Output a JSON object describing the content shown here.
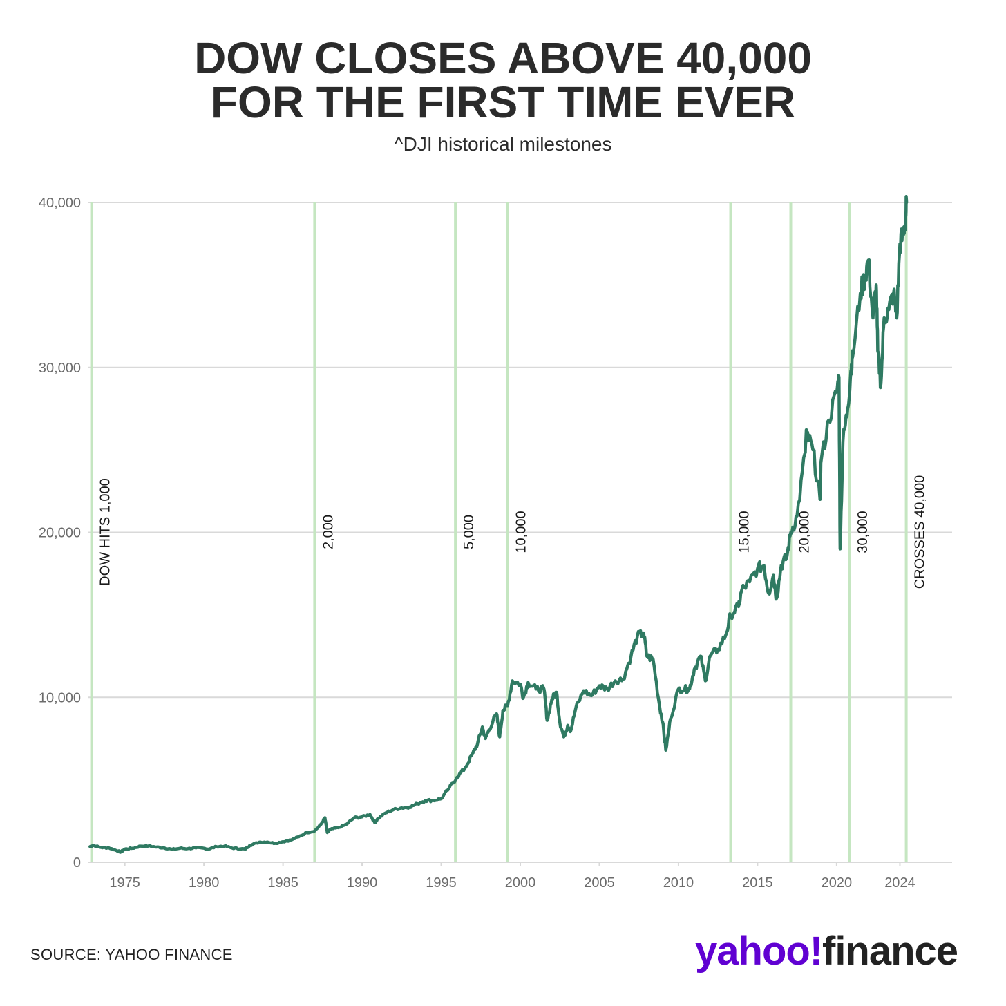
{
  "header": {
    "title_line1": "DOW CLOSES ABOVE 40,000",
    "title_line2": "FOR THE FIRST TIME EVER",
    "subtitle": "^DJI historical milestones"
  },
  "footer": {
    "source": "SOURCE: YAHOO FINANCE",
    "logo_brand": "yahoo!",
    "logo_product": "finance"
  },
  "colors": {
    "line": "#2f7a62",
    "milestone": "#c5e6c1",
    "grid": "#d9d9d9",
    "logo_brand": "#6001d2",
    "logo_product": "#222222"
  },
  "chart_data": {
    "type": "line",
    "title": "DOW CLOSES ABOVE 40,000 FOR THE FIRST TIME EVER",
    "subtitle": "^DJI historical milestones",
    "xlabel": "",
    "ylabel": "",
    "xlim": [
      1972.7,
      2027.3
    ],
    "ylim": [
      0,
      40000
    ],
    "grid": "horizontal",
    "x_ticks": [
      1975,
      1980,
      1985,
      1990,
      1995,
      2000,
      2005,
      2010,
      2015,
      2020,
      2024
    ],
    "x_tick_labels": [
      "1975",
      "1980",
      "1985",
      "1990",
      "1995",
      "2000",
      "2005",
      "2010",
      "2015",
      "2020",
      "2024"
    ],
    "y_ticks": [
      0,
      10000,
      20000,
      30000,
      40000
    ],
    "y_tick_labels": [
      "0",
      "10,000",
      "20,000",
      "30,000",
      "40,000"
    ],
    "milestones": [
      {
        "x": 1972.9,
        "label": "DOW HITS 1,000"
      },
      {
        "x": 1987.0,
        "label": "2,000"
      },
      {
        "x": 1995.9,
        "label": "5,000"
      },
      {
        "x": 1999.2,
        "label": "10,000"
      },
      {
        "x": 2013.3,
        "label": "15,000"
      },
      {
        "x": 2017.1,
        "label": "20,000"
      },
      {
        "x": 2020.8,
        "label": "30,000"
      },
      {
        "x": 2024.4,
        "label": "CROSSES 40,000"
      }
    ],
    "series": [
      {
        "x": [
          1972.8,
          1973.0,
          1973.5,
          1974.0,
          1974.5,
          1974.75,
          1975.0,
          1975.5,
          1976.0,
          1976.5,
          1977.0,
          1977.5,
          1978.0,
          1978.5,
          1979.0,
          1979.5,
          1980.0,
          1980.3,
          1980.8,
          1981.3,
          1981.8,
          1982.3,
          1982.6,
          1982.9,
          1983.5,
          1984.0,
          1984.5,
          1985.0,
          1985.5,
          1986.0,
          1986.5,
          1987.0,
          1987.4,
          1987.65,
          1987.8,
          1988.0,
          1988.5,
          1989.0,
          1989.5,
          1990.0,
          1990.5,
          1990.8,
          1991.0,
          1991.5,
          1992.0,
          1992.5,
          1993.0,
          1993.5,
          1994.0,
          1994.5,
          1995.0,
          1995.5,
          1996.0,
          1996.5,
          1997.0,
          1997.3,
          1997.6,
          1997.8,
          1998.0,
          1998.5,
          1998.7,
          1998.9,
          1999.2,
          1999.5,
          2000.0,
          2000.2,
          2000.5,
          2001.0,
          2001.5,
          2001.7,
          2002.0,
          2002.3,
          2002.5,
          2002.75,
          2003.0,
          2003.2,
          2003.5,
          2004.0,
          2004.5,
          2005.0,
          2005.5,
          2006.0,
          2006.5,
          2007.0,
          2007.4,
          2007.8,
          2008.0,
          2008.4,
          2008.8,
          2009.0,
          2009.2,
          2009.5,
          2010.0,
          2010.4,
          2010.7,
          2011.0,
          2011.4,
          2011.7,
          2012.0,
          2012.5,
          2013.0,
          2013.3,
          2013.8,
          2014.0,
          2014.5,
          2015.0,
          2015.4,
          2015.7,
          2016.0,
          2016.2,
          2016.5,
          2016.85,
          2017.1,
          2017.5,
          2018.0,
          2018.1,
          2018.5,
          2018.95,
          2019.0,
          2019.5,
          2020.0,
          2020.15,
          2020.22,
          2020.4,
          2020.7,
          2020.9,
          2021.0,
          2021.5,
          2021.8,
          2022.0,
          2022.3,
          2022.5,
          2022.6,
          2022.8,
          2023.0,
          2023.3,
          2023.6,
          2023.8,
          2024.0,
          2024.2,
          2024.35,
          2024.42
        ],
        "values": [
          950,
          1020,
          900,
          870,
          700,
          620,
          800,
          850,
          980,
          990,
          920,
          870,
          780,
          850,
          830,
          870,
          850,
          800,
          950,
          980,
          860,
          820,
          790,
          1030,
          1220,
          1230,
          1150,
          1250,
          1350,
          1550,
          1800,
          1900,
          2300,
          2700,
          1800,
          2000,
          2100,
          2300,
          2700,
          2750,
          2900,
          2400,
          2650,
          3000,
          3200,
          3300,
          3350,
          3550,
          3750,
          3750,
          3850,
          4500,
          5150,
          5700,
          6600,
          7200,
          8200,
          7500,
          8000,
          9000,
          7600,
          9200,
          9500,
          11000,
          10800,
          10000,
          10900,
          10500,
          10500,
          8600,
          9900,
          10300,
          8500,
          7600,
          8300,
          8000,
          9300,
          10400,
          10100,
          10700,
          10500,
          11000,
          11100,
          12500,
          13700,
          13900,
          12500,
          12300,
          9500,
          8500,
          6800,
          8700,
          10500,
          10500,
          10500,
          11700,
          12500,
          11000,
          12500,
          12900,
          13800,
          15000,
          15500,
          16500,
          17000,
          17800,
          18000,
          16300,
          17400,
          16000,
          18000,
          18500,
          20000,
          21000,
          24800,
          26000,
          25000,
          22000,
          24200,
          26800,
          28500,
          29400,
          19000,
          25500,
          27500,
          29800,
          30600,
          34500,
          35500,
          36500,
          33000,
          35000,
          31000,
          29000,
          33000,
          33500,
          34500,
          33000,
          37500,
          38000,
          39000,
          40000
        ]
      }
    ]
  }
}
